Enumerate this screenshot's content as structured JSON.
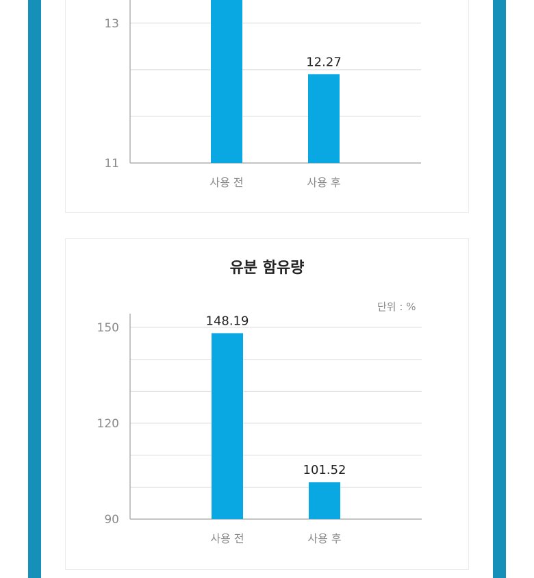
{
  "colors": {
    "frame": "#1690b8",
    "bar": "#0aa8e3",
    "grid": "#dcdcdc",
    "axis": "#b0b0b0"
  },
  "chart_data": [
    {
      "type": "bar",
      "title": "",
      "unit": "",
      "categories": [
        "사용 전",
        "사용 후"
      ],
      "values": [
        null,
        12.27
      ],
      "value_labels": [
        "",
        "12.27"
      ],
      "ylim": [
        11,
        14.3
      ],
      "yticks": [
        11,
        13
      ],
      "grid": true
    },
    {
      "type": "bar",
      "title": "유분 함유량",
      "unit": "단위 : %",
      "categories": [
        "사용 전",
        "사용 후"
      ],
      "values": [
        148.19,
        101.52
      ],
      "value_labels": [
        "148.19",
        "101.52"
      ],
      "ylim": [
        90,
        150
      ],
      "yticks": [
        90,
        120,
        150
      ],
      "grid": true
    }
  ]
}
